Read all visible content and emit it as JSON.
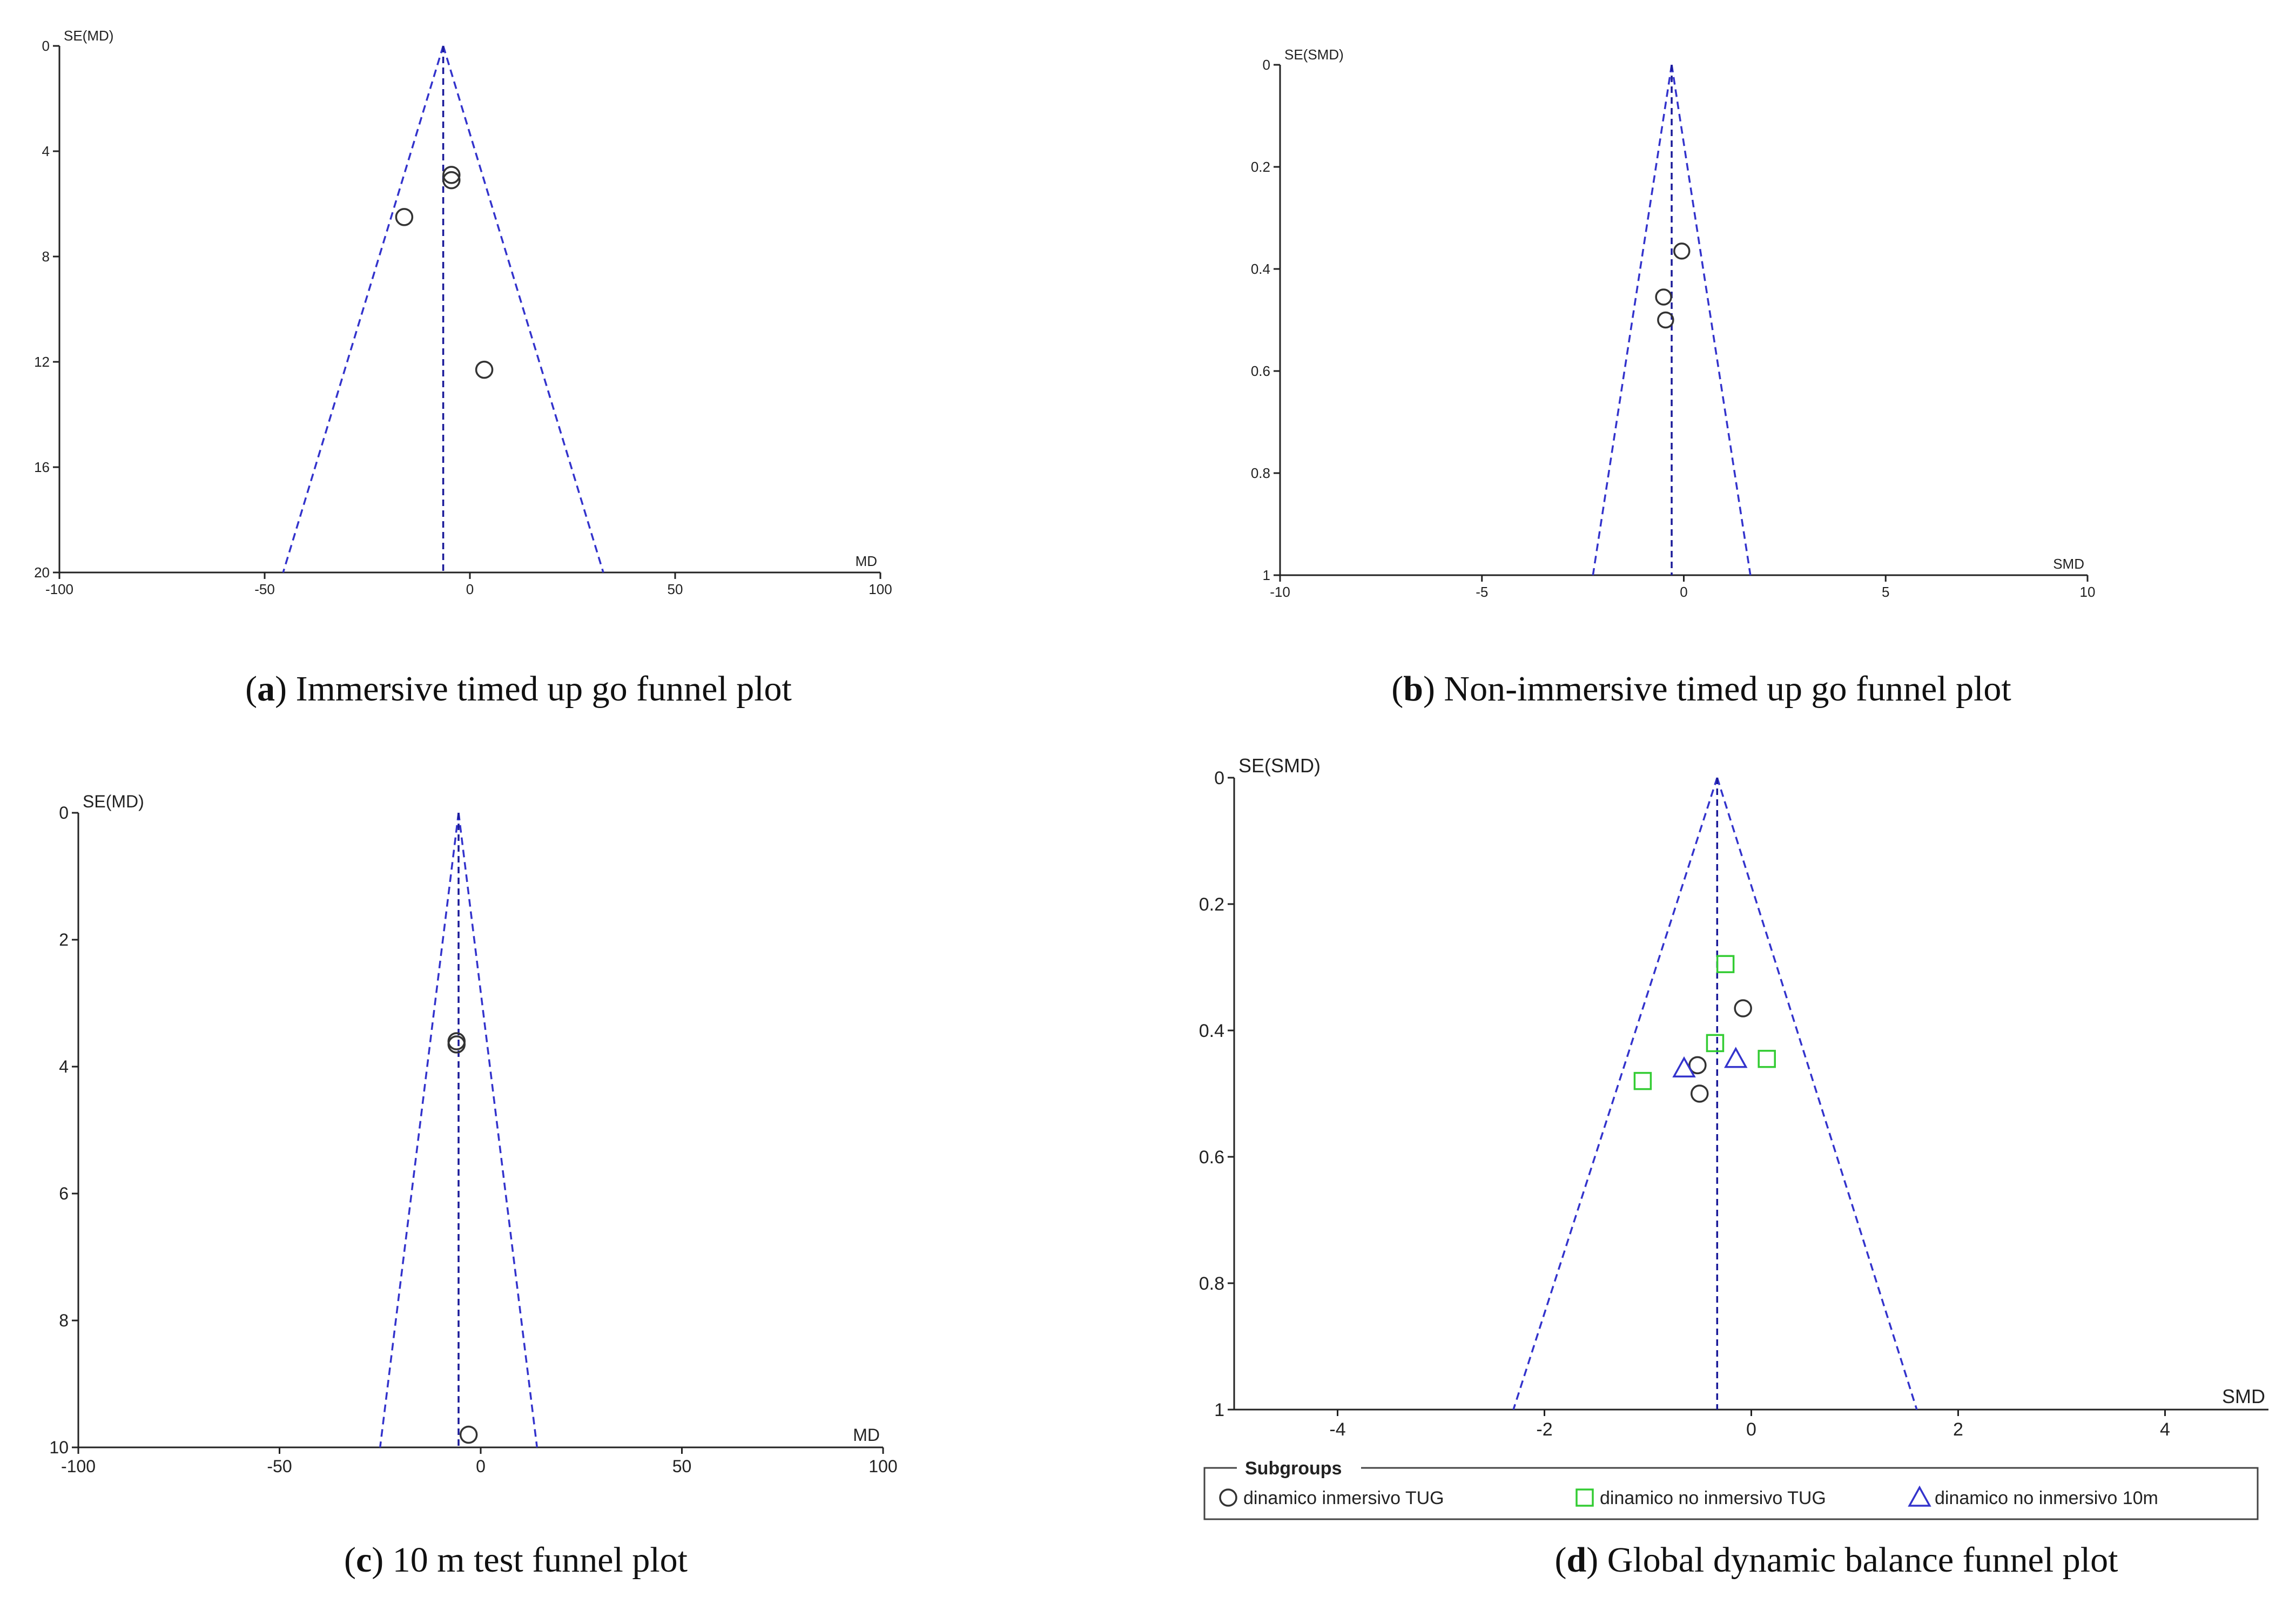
{
  "chart_data": [
    {
      "type": "scatter",
      "panel_label": "a",
      "caption": "Immersive timed up go funnel plot",
      "xlabel": "MD",
      "ylabel": "SE(MD)",
      "xlim": [
        -100,
        100
      ],
      "ylim": [
        0,
        20
      ],
      "y_reversed": true,
      "x_ticks": [
        "-100",
        "-50",
        "0",
        "50",
        "100"
      ],
      "y_ticks": [
        "0",
        "4",
        "8",
        "12",
        "16",
        "20"
      ],
      "pooled_estimate": -6.5,
      "funnel_bottom": [
        -45.5,
        32.5
      ],
      "points": [
        {
          "x": -4.5,
          "y": 4.9,
          "marker": "circle"
        },
        {
          "x": -4.5,
          "y": 5.1,
          "marker": "circle"
        },
        {
          "x": -16,
          "y": 6.5,
          "marker": "circle"
        },
        {
          "x": 3.5,
          "y": 12.3,
          "marker": "circle"
        }
      ]
    },
    {
      "type": "scatter",
      "panel_label": "b",
      "caption": "Non-immersive timed up go funnel plot",
      "xlabel": "SMD",
      "ylabel": "SE(SMD)",
      "xlim": [
        -10,
        10
      ],
      "ylim": [
        0,
        1
      ],
      "y_reversed": true,
      "x_ticks": [
        "-10",
        "-5",
        "0",
        "5",
        "10"
      ],
      "y_ticks": [
        "0",
        "0.2",
        "0.4",
        "0.6",
        "0.8",
        "1"
      ],
      "pooled_estimate": -0.3,
      "funnel_bottom": [
        -2.25,
        1.65
      ],
      "points": [
        {
          "x": -0.05,
          "y": 0.365,
          "marker": "circle"
        },
        {
          "x": -0.5,
          "y": 0.455,
          "marker": "circle"
        },
        {
          "x": -0.45,
          "y": 0.5,
          "marker": "circle"
        }
      ]
    },
    {
      "type": "scatter",
      "panel_label": "c",
      "caption": "10 m test funnel plot",
      "xlabel": "MD",
      "ylabel": "SE(MD)",
      "xlim": [
        -100,
        100
      ],
      "ylim": [
        0,
        10
      ],
      "y_reversed": true,
      "x_ticks": [
        "-100",
        "-50",
        "0",
        "50",
        "100"
      ],
      "y_ticks": [
        "0",
        "2",
        "4",
        "6",
        "8",
        "10"
      ],
      "pooled_estimate": -5.5,
      "funnel_bottom": [
        -25,
        14
      ],
      "points": [
        {
          "x": -6,
          "y": 3.6,
          "marker": "circle"
        },
        {
          "x": -6,
          "y": 3.65,
          "marker": "circle"
        },
        {
          "x": -3,
          "y": 9.8,
          "marker": "circle"
        }
      ]
    },
    {
      "type": "scatter",
      "panel_label": "d",
      "caption": "Global dynamic balance funnel plot",
      "xlabel": "SMD",
      "ylabel": "SE(SMD)",
      "xlim": [
        -5,
        5
      ],
      "ylim": [
        0,
        1
      ],
      "y_reversed": true,
      "x_ticks": [
        "-4",
        "-2",
        "0",
        "2",
        "4"
      ],
      "x_tick_values": [
        -4,
        -2,
        0,
        2,
        4
      ],
      "y_ticks": [
        "0",
        "0.2",
        "0.4",
        "0.6",
        "0.8",
        "1"
      ],
      "pooled_estimate": -0.33,
      "funnel_bottom": [
        -2.3,
        1.6
      ],
      "legend": {
        "title": "Subgroups",
        "position": "bottom",
        "items": [
          {
            "label": "dinamico inmersivo TUG",
            "marker": "circle",
            "color": "#333333"
          },
          {
            "label": "dinamico no inmersivo TUG",
            "marker": "square",
            "color": "#33cc33"
          },
          {
            "label": "dinamico no inmersivo 10m",
            "marker": "triangle",
            "color": "#3333cc"
          }
        ]
      },
      "series": [
        {
          "name": "dinamico inmersivo TUG",
          "marker": "circle",
          "color": "#333333",
          "points": [
            {
              "x": -0.08,
              "y": 0.365
            },
            {
              "x": -0.52,
              "y": 0.455
            },
            {
              "x": -0.5,
              "y": 0.5
            }
          ]
        },
        {
          "name": "dinamico no inmersivo TUG",
          "marker": "square",
          "color": "#33cc33",
          "points": [
            {
              "x": -0.25,
              "y": 0.295
            },
            {
              "x": -0.35,
              "y": 0.42
            },
            {
              "x": 0.15,
              "y": 0.445
            },
            {
              "x": -1.05,
              "y": 0.48
            }
          ]
        },
        {
          "name": "dinamico no inmersivo 10m",
          "marker": "triangle",
          "color": "#3333cc",
          "points": [
            {
              "x": -0.15,
              "y": 0.445
            },
            {
              "x": -0.65,
              "y": 0.46
            }
          ]
        }
      ]
    }
  ]
}
